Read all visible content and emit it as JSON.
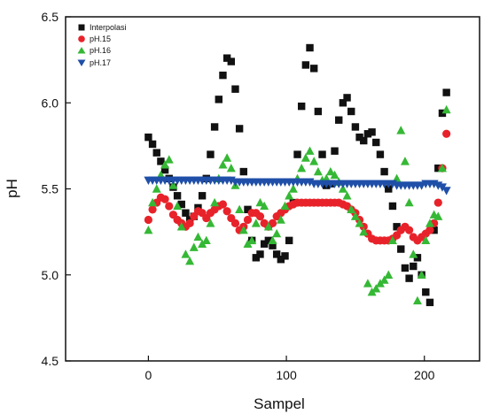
{
  "chart_data": {
    "type": "scatter",
    "xlabel": "Sampel",
    "ylabel": "pH",
    "xlim": [
      -60,
      240
    ],
    "ylim": [
      4.5,
      6.5
    ],
    "xticks": [
      0,
      100,
      200
    ],
    "yticks": [
      4.5,
      5.0,
      5.5,
      6.0,
      6.5
    ],
    "ytick_labels": [
      "4.5",
      "5.0",
      "5.5",
      "6.0",
      "6.5"
    ],
    "grid": false,
    "legend_position": "top-left",
    "series": [
      {
        "name": "Interpolasi",
        "marker": "square",
        "color": "#111111",
        "x": [
          0,
          3,
          6,
          9,
          12,
          15,
          18,
          21,
          24,
          27,
          30,
          33,
          36,
          39,
          42,
          45,
          48,
          51,
          54,
          57,
          60,
          63,
          66,
          69,
          72,
          75,
          78,
          81,
          84,
          87,
          90,
          93,
          96,
          99,
          102,
          105,
          108,
          111,
          114,
          117,
          120,
          123,
          126,
          129,
          132,
          135,
          138,
          141,
          144,
          147,
          150,
          153,
          156,
          159,
          162,
          165,
          168,
          171,
          174,
          177,
          180,
          183,
          186,
          189,
          192,
          195,
          198,
          201,
          204,
          207,
          210,
          213,
          216
        ],
        "y": [
          5.8,
          5.76,
          5.71,
          5.66,
          5.61,
          5.56,
          5.51,
          5.46,
          5.41,
          5.36,
          5.32,
          5.34,
          5.39,
          5.46,
          5.56,
          5.7,
          5.86,
          6.02,
          6.16,
          6.26,
          6.24,
          6.08,
          5.85,
          5.6,
          5.38,
          5.2,
          5.1,
          5.12,
          5.18,
          5.2,
          5.17,
          5.12,
          5.09,
          5.11,
          5.2,
          5.42,
          5.7,
          5.98,
          6.22,
          6.32,
          6.2,
          5.95,
          5.7,
          5.52,
          5.53,
          5.72,
          5.9,
          6.0,
          6.03,
          5.95,
          5.86,
          5.8,
          5.78,
          5.82,
          5.83,
          5.77,
          5.7,
          5.6,
          5.5,
          5.4,
          5.28,
          5.15,
          5.04,
          4.98,
          5.05,
          5.1,
          5.0,
          4.9,
          4.84,
          5.26,
          5.62,
          5.94,
          6.06
        ]
      },
      {
        "name": "pH.15",
        "marker": "circle",
        "color": "#e8222a",
        "x": [
          0,
          3,
          6,
          9,
          12,
          15,
          18,
          21,
          24,
          27,
          30,
          33,
          36,
          39,
          42,
          45,
          48,
          51,
          54,
          57,
          60,
          63,
          66,
          69,
          72,
          75,
          78,
          81,
          84,
          87,
          90,
          93,
          96,
          99,
          102,
          105,
          108,
          111,
          114,
          117,
          120,
          123,
          126,
          129,
          132,
          135,
          138,
          141,
          144,
          147,
          150,
          153,
          156,
          159,
          162,
          165,
          168,
          171,
          174,
          177,
          180,
          183,
          186,
          189,
          192,
          195,
          198,
          201,
          204,
          207,
          210,
          213,
          216
        ],
        "y": [
          5.32,
          5.38,
          5.42,
          5.45,
          5.44,
          5.4,
          5.35,
          5.32,
          5.3,
          5.28,
          5.3,
          5.34,
          5.37,
          5.36,
          5.33,
          5.36,
          5.38,
          5.4,
          5.41,
          5.37,
          5.33,
          5.3,
          5.26,
          5.28,
          5.32,
          5.36,
          5.36,
          5.34,
          5.3,
          5.28,
          5.3,
          5.34,
          5.36,
          5.38,
          5.4,
          5.41,
          5.42,
          5.42,
          5.42,
          5.42,
          5.42,
          5.42,
          5.42,
          5.42,
          5.42,
          5.42,
          5.42,
          5.41,
          5.4,
          5.38,
          5.36,
          5.32,
          5.28,
          5.24,
          5.21,
          5.2,
          5.2,
          5.2,
          5.2,
          5.21,
          5.23,
          5.26,
          5.28,
          5.26,
          5.22,
          5.2,
          5.22,
          5.24,
          5.26,
          5.3,
          5.42,
          5.62,
          5.82
        ]
      },
      {
        "name": "pH.16",
        "marker": "triangle-up",
        "color": "#35b835",
        "x": [
          0,
          3,
          6,
          9,
          12,
          15,
          18,
          21,
          24,
          27,
          30,
          33,
          36,
          39,
          42,
          45,
          48,
          51,
          54,
          57,
          60,
          63,
          66,
          69,
          72,
          75,
          78,
          81,
          84,
          87,
          90,
          93,
          96,
          99,
          102,
          105,
          108,
          111,
          114,
          117,
          120,
          123,
          126,
          129,
          132,
          135,
          138,
          141,
          144,
          147,
          150,
          153,
          156,
          159,
          162,
          165,
          168,
          171,
          174,
          177,
          180,
          183,
          186,
          189,
          192,
          195,
          198,
          201,
          204,
          207,
          210,
          213,
          216
        ],
        "y": [
          5.26,
          5.42,
          5.5,
          5.58,
          5.64,
          5.67,
          5.52,
          5.4,
          5.28,
          5.12,
          5.08,
          5.16,
          5.22,
          5.18,
          5.2,
          5.3,
          5.42,
          5.56,
          5.64,
          5.68,
          5.62,
          5.52,
          5.38,
          5.26,
          5.18,
          5.2,
          5.3,
          5.42,
          5.4,
          5.28,
          5.2,
          5.24,
          5.32,
          5.4,
          5.46,
          5.5,
          5.56,
          5.62,
          5.68,
          5.72,
          5.66,
          5.6,
          5.55,
          5.56,
          5.6,
          5.58,
          5.54,
          5.5,
          5.46,
          5.38,
          5.34,
          5.3,
          5.25,
          4.95,
          4.9,
          4.92,
          4.95,
          4.97,
          5.0,
          5.2,
          5.56,
          5.84,
          5.66,
          5.42,
          5.12,
          4.85,
          5.0,
          5.2,
          5.3,
          5.35,
          5.34,
          5.62,
          5.96
        ]
      },
      {
        "name": "pH.17",
        "marker": "triangle-down",
        "color": "#1f4fa8",
        "x": [
          0,
          3,
          6,
          9,
          12,
          15,
          18,
          21,
          24,
          27,
          30,
          33,
          36,
          39,
          42,
          45,
          48,
          51,
          54,
          57,
          60,
          63,
          66,
          69,
          72,
          75,
          78,
          81,
          84,
          87,
          90,
          93,
          96,
          99,
          102,
          105,
          108,
          111,
          114,
          117,
          120,
          123,
          126,
          129,
          132,
          135,
          138,
          141,
          144,
          147,
          150,
          153,
          156,
          159,
          162,
          165,
          168,
          171,
          174,
          177,
          180,
          183,
          186,
          189,
          192,
          195,
          198,
          201,
          204,
          207,
          210,
          213,
          216
        ],
        "y": [
          5.55,
          5.55,
          5.55,
          5.55,
          5.55,
          5.55,
          5.55,
          5.55,
          5.55,
          5.55,
          5.55,
          5.55,
          5.55,
          5.55,
          5.55,
          5.55,
          5.55,
          5.55,
          5.55,
          5.55,
          5.55,
          5.54,
          5.54,
          5.54,
          5.54,
          5.54,
          5.54,
          5.54,
          5.54,
          5.54,
          5.54,
          5.54,
          5.54,
          5.54,
          5.54,
          5.54,
          5.54,
          5.54,
          5.54,
          5.54,
          5.53,
          5.53,
          5.53,
          5.53,
          5.53,
          5.53,
          5.53,
          5.53,
          5.53,
          5.53,
          5.53,
          5.53,
          5.53,
          5.53,
          5.53,
          5.53,
          5.53,
          5.53,
          5.53,
          5.53,
          5.52,
          5.52,
          5.52,
          5.52,
          5.52,
          5.52,
          5.52,
          5.53,
          5.53,
          5.53,
          5.52,
          5.51,
          5.49
        ]
      }
    ]
  }
}
